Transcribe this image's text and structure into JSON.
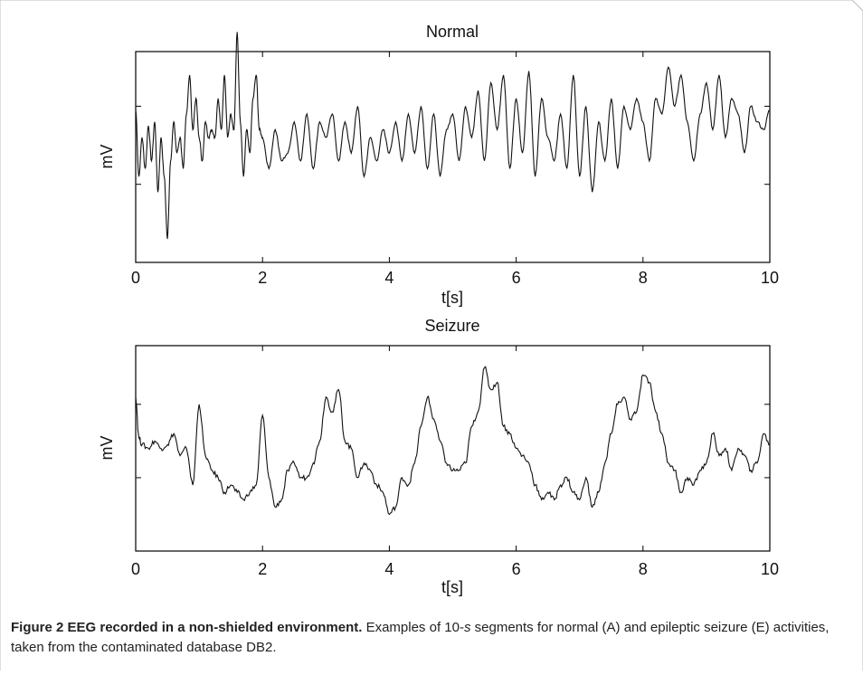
{
  "caption": {
    "bold": "Figure 2 EEG recorded in a non-shielded environment.",
    "text": " Examples of 10-",
    "italic": "s",
    "text2": " segments for normal (A) and epileptic seizure (E) activities, taken from the contaminated database DB2."
  },
  "chart_data": [
    {
      "type": "line",
      "title": "Normal",
      "xlabel": "t[s]",
      "ylabel": "mV",
      "xlim": [
        0,
        10
      ],
      "ylim": [
        -1.5,
        1.2
      ],
      "xticks": [
        "0",
        "2",
        "4",
        "6",
        "8",
        "10"
      ],
      "yticks": [
        -0.5,
        0.5
      ],
      "grid": false,
      "series": [
        {
          "x": [
            0,
            0.05,
            0.1,
            0.15,
            0.2,
            0.25,
            0.3,
            0.35,
            0.4,
            0.45,
            0.5,
            0.55,
            0.6,
            0.65,
            0.7,
            0.75,
            0.8,
            0.85,
            0.9,
            0.95,
            1.0,
            1.05,
            1.1,
            1.15,
            1.2,
            1.25,
            1.3,
            1.35,
            1.4,
            1.45,
            1.5,
            1.55,
            1.6,
            1.65,
            1.7,
            1.75,
            1.8,
            1.85,
            1.9,
            1.95,
            2.0,
            2.1,
            2.2,
            2.3,
            2.4,
            2.5,
            2.6,
            2.7,
            2.8,
            2.9,
            3.0,
            3.1,
            3.2,
            3.3,
            3.4,
            3.5,
            3.6,
            3.7,
            3.8,
            3.9,
            4.0,
            4.1,
            4.2,
            4.3,
            4.4,
            4.5,
            4.6,
            4.7,
            4.8,
            4.9,
            5.0,
            5.1,
            5.2,
            5.3,
            5.4,
            5.5,
            5.6,
            5.7,
            5.8,
            5.9,
            6.0,
            6.1,
            6.2,
            6.3,
            6.4,
            6.5,
            6.6,
            6.7,
            6.8,
            6.9,
            7.0,
            7.1,
            7.2,
            7.3,
            7.4,
            7.5,
            7.6,
            7.7,
            7.8,
            7.9,
            8.0,
            8.1,
            8.2,
            8.3,
            8.4,
            8.5,
            8.6,
            8.7,
            8.8,
            8.9,
            9.0,
            9.1,
            9.2,
            9.3,
            9.4,
            9.5,
            9.6,
            9.7,
            9.8,
            9.9,
            10.0
          ],
          "values": [
            0.45,
            -0.4,
            0.1,
            -0.3,
            0.25,
            -0.2,
            0.3,
            -0.6,
            0.1,
            -0.4,
            -1.2,
            -0.2,
            0.3,
            -0.1,
            0.1,
            -0.3,
            0.4,
            0.9,
            0.2,
            0.6,
            0.1,
            -0.2,
            0.3,
            0.1,
            0.2,
            0.1,
            0.6,
            0.2,
            0.9,
            0.1,
            0.4,
            0.2,
            1.45,
            0.3,
            -0.4,
            0.2,
            -0.1,
            0.6,
            0.9,
            0.2,
            0.1,
            -0.3,
            0.2,
            -0.2,
            -0.1,
            0.3,
            -0.2,
            0.4,
            -0.3,
            0.3,
            0.1,
            0.4,
            -0.2,
            0.3,
            -0.1,
            0.5,
            -0.4,
            0.1,
            -0.2,
            0.2,
            -0.1,
            0.3,
            -0.2,
            0.4,
            -0.1,
            0.5,
            -0.3,
            0.4,
            -0.4,
            0.2,
            0.4,
            -0.2,
            0.5,
            0.1,
            0.7,
            -0.2,
            0.8,
            0.2,
            0.9,
            -0.3,
            0.6,
            -0.1,
            0.95,
            -0.4,
            0.6,
            0.1,
            -0.2,
            0.4,
            -0.3,
            0.9,
            -0.4,
            0.5,
            -0.6,
            0.3,
            -0.2,
            0.6,
            -0.3,
            0.5,
            0.2,
            0.6,
            0.3,
            -0.2,
            0.6,
            0.4,
            1.0,
            0.5,
            0.9,
            0.3,
            -0.2,
            0.4,
            0.8,
            0.2,
            0.9,
            0.1,
            0.6,
            0.4,
            -0.1,
            0.5,
            0.3,
            0.2,
            0.45
          ]
        }
      ]
    },
    {
      "type": "line",
      "title": "Seizure",
      "xlabel": "t[s]",
      "ylabel": "mV",
      "xlim": [
        0,
        10
      ],
      "ylim": [
        -1.5,
        1.3
      ],
      "xticks": [
        "0",
        "2",
        "4",
        "6",
        "8",
        "10"
      ],
      "yticks": [
        -0.5,
        0.5
      ],
      "grid": false,
      "series": [
        {
          "x": [
            0,
            0.05,
            0.1,
            0.2,
            0.3,
            0.4,
            0.5,
            0.6,
            0.7,
            0.8,
            0.9,
            1.0,
            1.1,
            1.2,
            1.3,
            1.4,
            1.5,
            1.6,
            1.7,
            1.8,
            1.9,
            2.0,
            2.1,
            2.2,
            2.3,
            2.4,
            2.5,
            2.6,
            2.7,
            2.8,
            2.9,
            3.0,
            3.1,
            3.2,
            3.3,
            3.4,
            3.5,
            3.6,
            3.7,
            3.8,
            3.9,
            4.0,
            4.1,
            4.2,
            4.3,
            4.4,
            4.5,
            4.6,
            4.7,
            4.8,
            4.9,
            5.0,
            5.1,
            5.2,
            5.3,
            5.4,
            5.5,
            5.6,
            5.7,
            5.8,
            5.9,
            6.0,
            6.1,
            6.2,
            6.3,
            6.4,
            6.5,
            6.6,
            6.7,
            6.8,
            6.9,
            7.0,
            7.1,
            7.2,
            7.3,
            7.4,
            7.5,
            7.6,
            7.7,
            7.8,
            7.9,
            8.0,
            8.1,
            8.2,
            8.3,
            8.4,
            8.5,
            8.6,
            8.7,
            8.8,
            8.9,
            9.0,
            9.1,
            9.2,
            9.3,
            9.4,
            9.5,
            9.6,
            9.7,
            9.8,
            9.9,
            10.0
          ],
          "values": [
            0.6,
            0.05,
            -0.05,
            -0.1,
            0.0,
            -0.1,
            -0.05,
            0.1,
            -0.2,
            -0.1,
            -0.6,
            0.5,
            -0.2,
            -0.4,
            -0.5,
            -0.7,
            -0.6,
            -0.7,
            -0.8,
            -0.7,
            -0.6,
            0.35,
            -0.5,
            -0.9,
            -0.8,
            -0.4,
            -0.3,
            -0.5,
            -0.5,
            -0.3,
            0.0,
            0.6,
            0.4,
            0.7,
            0.0,
            -0.1,
            -0.5,
            -0.3,
            -0.4,
            -0.6,
            -0.7,
            -1.0,
            -0.9,
            -0.5,
            -0.6,
            -0.3,
            0.2,
            0.6,
            0.3,
            0.0,
            -0.3,
            -0.4,
            -0.4,
            -0.3,
            0.2,
            0.4,
            1.0,
            0.7,
            0.8,
            0.2,
            0.1,
            -0.1,
            -0.2,
            -0.3,
            -0.6,
            -0.8,
            -0.7,
            -0.8,
            -0.6,
            -0.5,
            -0.7,
            -0.8,
            -0.5,
            -0.9,
            -0.7,
            -0.3,
            0.1,
            0.5,
            0.6,
            0.3,
            0.4,
            0.9,
            0.8,
            0.4,
            0.1,
            -0.3,
            -0.4,
            -0.7,
            -0.5,
            -0.6,
            -0.4,
            -0.3,
            0.1,
            -0.2,
            -0.1,
            -0.4,
            -0.1,
            -0.2,
            -0.4,
            -0.3,
            0.1,
            -0.05
          ]
        }
      ]
    }
  ]
}
